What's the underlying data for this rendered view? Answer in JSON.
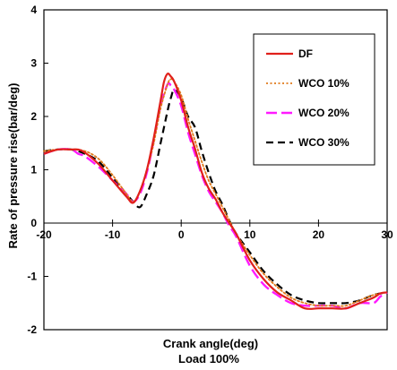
{
  "chart_data": {
    "type": "line",
    "title": "",
    "xlabel": "Crank angle(deg)",
    "xlabel_line2": "Load 100%",
    "ylabel": "Rate of pressure rise(bar/deg)",
    "xlim": [
      -20,
      30
    ],
    "ylim": [
      -2,
      4
    ],
    "xticks": [
      -20,
      -10,
      0,
      10,
      20,
      30
    ],
    "yticks": [
      -2,
      -1,
      0,
      1,
      2,
      3,
      4
    ],
    "grid": false,
    "legend_position": "top-right",
    "series": [
      {
        "name": "DF",
        "color": "#e0201b",
        "dash": "solid",
        "x": [
          -20,
          -18,
          -16,
          -15,
          -14,
          -12,
          -10,
          -8,
          -7,
          -6,
          -5,
          -4,
          -3,
          -2.5,
          -2,
          -1.5,
          -1,
          0,
          1,
          2,
          3,
          4,
          5,
          6,
          7,
          8,
          10,
          12,
          14,
          16,
          18,
          20,
          22,
          24,
          26,
          28,
          29,
          30
        ],
        "y": [
          1.3,
          1.38,
          1.38,
          1.38,
          1.32,
          1.1,
          0.8,
          0.5,
          0.38,
          0.6,
          1.0,
          1.6,
          2.3,
          2.65,
          2.8,
          2.75,
          2.65,
          2.3,
          1.8,
          1.4,
          0.95,
          0.65,
          0.45,
          0.2,
          0.0,
          -0.2,
          -0.7,
          -1.05,
          -1.3,
          -1.45,
          -1.6,
          -1.6,
          -1.6,
          -1.6,
          -1.5,
          -1.4,
          -1.32,
          -1.3
        ]
      },
      {
        "name": "WCO 10%",
        "color": "#e07a1b",
        "dash": "dotted",
        "x": [
          -20,
          -18,
          -16,
          -14,
          -12,
          -10,
          -8,
          -7,
          -6,
          -5,
          -4,
          -3,
          -2,
          -1.5,
          -1,
          0,
          1,
          2,
          3,
          4,
          5,
          6,
          7,
          8,
          10,
          12,
          14,
          16,
          18,
          20,
          22,
          24,
          26,
          28,
          30
        ],
        "y": [
          1.35,
          1.38,
          1.38,
          1.35,
          1.2,
          0.9,
          0.55,
          0.4,
          0.6,
          1.0,
          1.5,
          2.15,
          2.6,
          2.7,
          2.65,
          2.4,
          1.95,
          1.55,
          1.15,
          0.8,
          0.55,
          0.3,
          0.05,
          -0.2,
          -0.6,
          -0.95,
          -1.2,
          -1.4,
          -1.5,
          -1.55,
          -1.55,
          -1.55,
          -1.45,
          -1.35,
          -1.3
        ]
      },
      {
        "name": "WCO 20%",
        "color": "#ff1aff",
        "dash": "dashed",
        "x": [
          -20,
          -18,
          -16,
          -15,
          -14,
          -12,
          -10,
          -8,
          -7,
          -6,
          -5,
          -4,
          -3,
          -2,
          -1.5,
          -1,
          0,
          1,
          2,
          3,
          4,
          5,
          6,
          7,
          8,
          10,
          12,
          14,
          16,
          18,
          20,
          22,
          24,
          26,
          28,
          29,
          30
        ],
        "y": [
          1.3,
          1.38,
          1.38,
          1.3,
          1.25,
          1.05,
          0.8,
          0.55,
          0.4,
          0.55,
          0.95,
          1.55,
          2.2,
          2.6,
          2.58,
          2.5,
          2.2,
          1.7,
          1.3,
          0.9,
          0.6,
          0.4,
          0.2,
          -0.05,
          -0.25,
          -0.8,
          -1.15,
          -1.35,
          -1.5,
          -1.55,
          -1.55,
          -1.55,
          -1.6,
          -1.5,
          -1.5,
          -1.38,
          -1.3
        ]
      },
      {
        "name": "WCO 30%",
        "color": "#000000",
        "dash": "longdash",
        "x": [
          -20,
          -18,
          -16,
          -14,
          -12,
          -10,
          -8,
          -7,
          -6,
          -5,
          -4,
          -3,
          -2,
          -1.5,
          -1,
          0,
          1,
          2,
          3,
          4,
          5,
          6,
          7,
          8,
          10,
          12,
          14,
          16,
          18,
          20,
          22,
          24,
          26,
          28,
          30
        ],
        "y": [
          1.35,
          1.38,
          1.38,
          1.3,
          1.15,
          0.85,
          0.55,
          0.4,
          0.3,
          0.55,
          0.9,
          1.5,
          2.1,
          2.35,
          2.5,
          2.35,
          2.0,
          1.8,
          1.35,
          0.95,
          0.6,
          0.35,
          0.05,
          -0.2,
          -0.55,
          -0.9,
          -1.15,
          -1.35,
          -1.45,
          -1.5,
          -1.5,
          -1.5,
          -1.45,
          -1.35,
          -1.3
        ]
      }
    ]
  }
}
